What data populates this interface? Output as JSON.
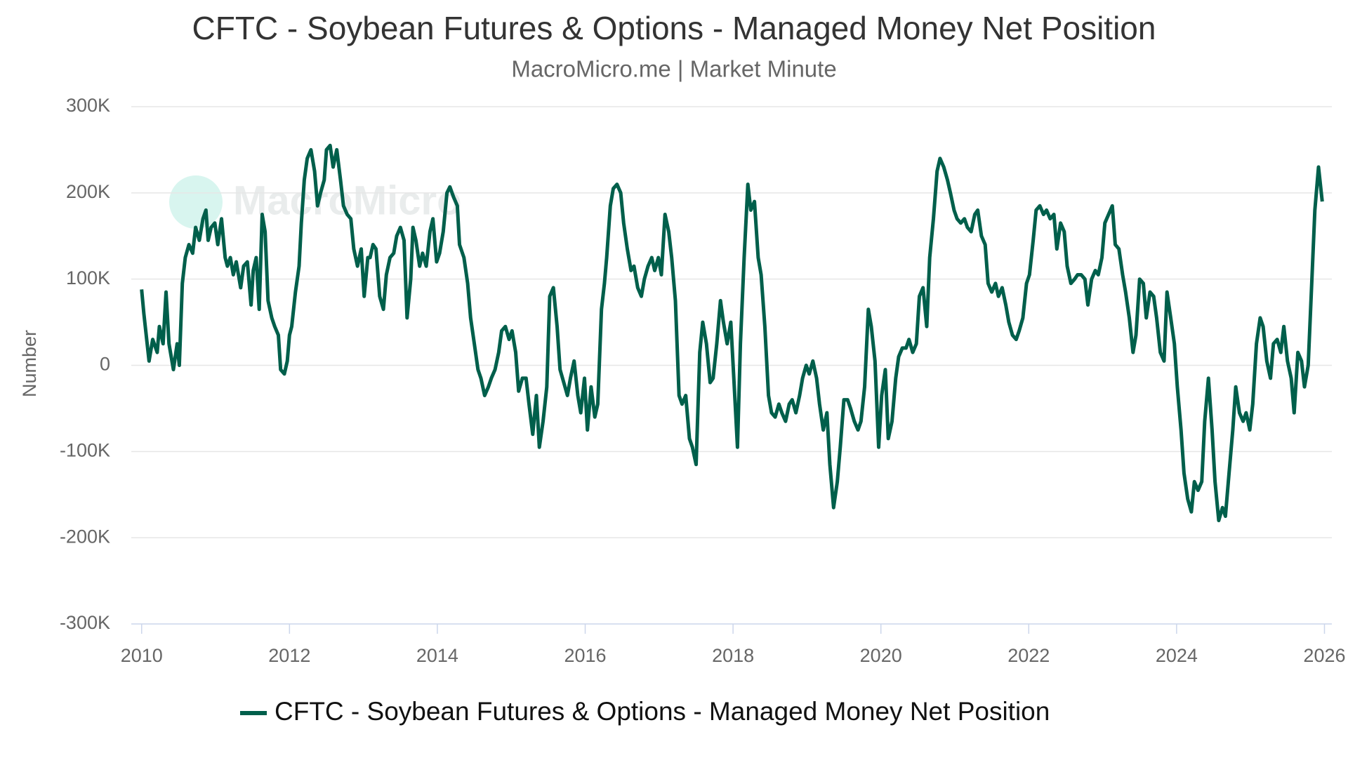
{
  "chart_data": {
    "type": "line",
    "title": "CFTC - Soybean Futures & Options - Managed Money Net Position",
    "subtitle": "MacroMicro.me | Market Minute",
    "watermark": "MacroMicro",
    "ylabel": "Number",
    "xlim": [
      2009.86,
      2026.1
    ],
    "xticks": [
      2010,
      2012,
      2014,
      2016,
      2018,
      2020,
      2022,
      2024,
      2026
    ],
    "ylim": [
      -300000,
      300000
    ],
    "yticks": [
      {
        "value": -300000,
        "label": "-300K"
      },
      {
        "value": -200000,
        "label": "-200K"
      },
      {
        "value": -100000,
        "label": "-100K"
      },
      0,
      {
        "value": 100000,
        "label": "100K"
      },
      {
        "value": 200000,
        "label": "200K"
      },
      {
        "value": 300000,
        "label": "300K"
      }
    ],
    "grid": true,
    "legend": "bottom",
    "x": [
      2010.0,
      2010.03,
      2010.1,
      2010.15,
      2010.21,
      2010.24,
      2010.29,
      2010.33,
      2010.37,
      2010.43,
      2010.48,
      2010.51,
      2010.55,
      2010.59,
      2010.64,
      2010.69,
      2010.73,
      2010.78,
      2010.83,
      2010.87,
      2010.9,
      2010.94,
      2010.99,
      2011.03,
      2011.08,
      2011.13,
      2011.16,
      2011.2,
      2011.24,
      2011.28,
      2011.34,
      2011.38,
      2011.43,
      2011.48,
      2011.51,
      2011.55,
      2011.59,
      2011.63,
      2011.67,
      2011.71,
      2011.76,
      2011.8,
      2011.85,
      2011.88,
      2011.93,
      2011.97,
      2012.0,
      2012.03,
      2012.08,
      2012.13,
      2012.16,
      2012.2,
      2012.24,
      2012.29,
      2012.34,
      2012.38,
      2012.42,
      2012.47,
      2012.5,
      2012.55,
      2012.59,
      2012.64,
      2012.69,
      2012.73,
      2012.78,
      2012.83,
      2012.87,
      2012.92,
      2012.97,
      2013.01,
      2013.06,
      2013.09,
      2013.13,
      2013.17,
      2013.22,
      2013.27,
      2013.31,
      2013.36,
      2013.41,
      2013.45,
      2013.5,
      2013.55,
      2013.59,
      2013.64,
      2013.67,
      2013.71,
      2013.76,
      2013.8,
      2013.85,
      2013.9,
      2013.94,
      2013.99,
      2014.03,
      2014.08,
      2014.13,
      2014.17,
      2014.22,
      2014.27,
      2014.3,
      2014.36,
      2014.41,
      2014.45,
      2014.5,
      2014.55,
      2014.59,
      2014.64,
      2014.69,
      2014.73,
      2014.78,
      2014.83,
      2014.87,
      2014.92,
      2014.97,
      2015.01,
      2015.06,
      2015.1,
      2015.15,
      2015.2,
      2015.24,
      2015.29,
      2015.34,
      2015.38,
      2015.43,
      2015.48,
      2015.52,
      2015.57,
      2015.62,
      2015.66,
      2015.71,
      2015.76,
      2015.8,
      2015.85,
      2015.9,
      2015.94,
      2015.99,
      2016.03,
      2016.08,
      2016.13,
      2016.17,
      2016.22,
      2016.26,
      2016.29,
      2016.34,
      2016.38,
      2016.43,
      2016.48,
      2016.52,
      2016.57,
      2016.62,
      2016.66,
      2016.71,
      2016.76,
      2016.8,
      2016.85,
      2016.9,
      2016.94,
      2016.99,
      2017.03,
      2017.08,
      2017.13,
      2017.17,
      2017.22,
      2017.27,
      2017.31,
      2017.36,
      2017.41,
      2017.45,
      2017.5,
      2017.55,
      2017.59,
      2017.64,
      2017.69,
      2017.73,
      2017.78,
      2017.83,
      2017.87,
      2017.92,
      2017.97,
      2018.01,
      2018.06,
      2018.1,
      2018.15,
      2018.2,
      2018.24,
      2018.29,
      2018.34,
      2018.38,
      2018.43,
      2018.48,
      2018.52,
      2018.57,
      2018.62,
      2018.66,
      2018.71,
      2018.76,
      2018.8,
      2018.85,
      2018.9,
      2018.94,
      2018.99,
      2019.03,
      2019.08,
      2019.13,
      2019.17,
      2019.22,
      2019.27,
      2019.31,
      2019.36,
      2019.41,
      2019.45,
      2019.5,
      2019.55,
      2019.59,
      2019.64,
      2019.69,
      2019.73,
      2019.78,
      2019.83,
      2019.87,
      2019.92,
      2019.97,
      2020.01,
      2020.06,
      2020.1,
      2020.15,
      2020.2,
      2020.24,
      2020.29,
      2020.34,
      2020.38,
      2020.43,
      2020.48,
      2020.52,
      2020.57,
      2020.62,
      2020.66,
      2020.71,
      2020.76,
      2020.8,
      2020.85,
      2020.9,
      2020.94,
      2020.99,
      2021.03,
      2021.08,
      2021.13,
      2021.17,
      2021.22,
      2021.27,
      2021.31,
      2021.36,
      2021.41,
      2021.45,
      2021.5,
      2021.55,
      2021.59,
      2021.64,
      2021.69,
      2021.73,
      2021.78,
      2021.83,
      2021.87,
      2021.92,
      2021.97,
      2022.01,
      2022.06,
      2022.1,
      2022.15,
      2022.2,
      2022.24,
      2022.29,
      2022.34,
      2022.38,
      2022.43,
      2022.48,
      2022.52,
      2022.57,
      2022.62,
      2022.66,
      2022.71,
      2022.76,
      2022.8,
      2022.85,
      2022.9,
      2022.94,
      2022.99,
      2023.03,
      2023.08,
      2023.13,
      2023.17,
      2023.22,
      2023.27,
      2023.31,
      2023.36,
      2023.41,
      2023.45,
      2023.5,
      2023.55,
      2023.59,
      2023.64,
      2023.69,
      2023.73,
      2023.78,
      2023.83,
      2023.87,
      2023.92,
      2023.97,
      2024.01,
      2024.06,
      2024.1,
      2024.15,
      2024.2,
      2024.24,
      2024.29,
      2024.34,
      2024.38,
      2024.43,
      2024.48,
      2024.52,
      2024.57,
      2024.62,
      2024.66,
      2024.71,
      2024.76,
      2024.8,
      2024.85,
      2024.9,
      2024.94,
      2024.99,
      2025.03,
      2025.08,
      2025.13,
      2025.17,
      2025.22,
      2025.27,
      2025.31,
      2025.36,
      2025.41,
      2025.45,
      2025.5,
      2025.55,
      2025.59,
      2025.64,
      2025.69,
      2025.73,
      2025.78,
      2025.83,
      2025.87,
      2025.92,
      2025.97
    ],
    "series": [
      {
        "name": "CFTC - Soybean Futures & Options - Managed Money Net Position",
        "color": "#005f4b",
        "values": [
          88000,
          60000,
          5000,
          30000,
          15000,
          45000,
          25000,
          85000,
          25000,
          -5000,
          25000,
          0,
          95000,
          125000,
          140000,
          130000,
          160000,
          145000,
          170000,
          180000,
          145000,
          160000,
          165000,
          140000,
          170000,
          125000,
          115000,
          125000,
          105000,
          120000,
          90000,
          115000,
          120000,
          70000,
          110000,
          125000,
          65000,
          175000,
          155000,
          75000,
          55000,
          45000,
          35000,
          -5000,
          -10000,
          5000,
          35000,
          45000,
          85000,
          115000,
          165000,
          215000,
          240000,
          250000,
          225000,
          185000,
          200000,
          215000,
          250000,
          255000,
          230000,
          250000,
          215000,
          185000,
          175000,
          170000,
          135000,
          115000,
          135000,
          80000,
          125000,
          125000,
          140000,
          135000,
          80000,
          65000,
          105000,
          125000,
          130000,
          150000,
          160000,
          145000,
          55000,
          100000,
          160000,
          145000,
          115000,
          130000,
          115000,
          155000,
          170000,
          120000,
          130000,
          155000,
          200000,
          207000,
          195000,
          185000,
          140000,
          125000,
          95000,
          55000,
          25000,
          -5000,
          -15000,
          -35000,
          -25000,
          -15000,
          -5000,
          15000,
          40000,
          45000,
          30000,
          40000,
          15000,
          -30000,
          -15000,
          -15000,
          -45000,
          -80000,
          -35000,
          -95000,
          -65000,
          -25000,
          80000,
          90000,
          45000,
          -5000,
          -20000,
          -35000,
          -15000,
          5000,
          -35000,
          -55000,
          -15000,
          -75000,
          -25000,
          -60000,
          -45000,
          65000,
          95000,
          125000,
          185000,
          205000,
          210000,
          200000,
          165000,
          135000,
          110000,
          115000,
          90000,
          80000,
          100000,
          115000,
          125000,
          110000,
          125000,
          105000,
          175000,
          155000,
          125000,
          75000,
          -35000,
          -45000,
          -35000,
          -85000,
          -95000,
          -115000,
          15000,
          50000,
          25000,
          -20000,
          -15000,
          25000,
          75000,
          50000,
          25000,
          50000,
          -15000,
          -95000,
          25000,
          125000,
          210000,
          180000,
          190000,
          125000,
          105000,
          45000,
          -35000,
          -55000,
          -60000,
          -45000,
          -55000,
          -65000,
          -45000,
          -40000,
          -55000,
          -35000,
          -15000,
          0,
          -10000,
          5000,
          -15000,
          -45000,
          -75000,
          -55000,
          -115000,
          -165000,
          -135000,
          -95000,
          -40000,
          -40000,
          -50000,
          -65000,
          -75000,
          -65000,
          -25000,
          65000,
          45000,
          5000,
          -95000,
          -35000,
          -5000,
          -85000,
          -65000,
          -15000,
          10000,
          20000,
          20000,
          30000,
          15000,
          25000,
          80000,
          90000,
          45000,
          125000,
          170000,
          225000,
          240000,
          230000,
          215000,
          200000,
          180000,
          170000,
          165000,
          170000,
          160000,
          155000,
          175000,
          180000,
          150000,
          140000,
          95000,
          85000,
          95000,
          80000,
          90000,
          70000,
          50000,
          35000,
          30000,
          40000,
          55000,
          95000,
          105000,
          145000,
          180000,
          185000,
          175000,
          180000,
          170000,
          175000,
          135000,
          165000,
          155000,
          115000,
          95000,
          100000,
          105000,
          105000,
          100000,
          70000,
          100000,
          110000,
          105000,
          125000,
          165000,
          175000,
          185000,
          140000,
          135000,
          105000,
          85000,
          55000,
          15000,
          35000,
          100000,
          95000,
          55000,
          85000,
          80000,
          55000,
          15000,
          5000,
          85000,
          55000,
          25000,
          -25000,
          -75000,
          -125000,
          -155000,
          -170000,
          -135000,
          -145000,
          -135000,
          -65000,
          -15000,
          -75000,
          -135000,
          -180000,
          -165000,
          -175000,
          -125000,
          -75000,
          -25000,
          -55000,
          -65000,
          -55000,
          -75000,
          -45000,
          25000,
          55000,
          45000,
          5000,
          -15000,
          25000,
          30000,
          15000,
          45000,
          5000,
          -15000,
          -55000,
          15000,
          5000,
          -25000,
          0,
          100000,
          180000,
          230000,
          190000
        ]
      }
    ]
  }
}
